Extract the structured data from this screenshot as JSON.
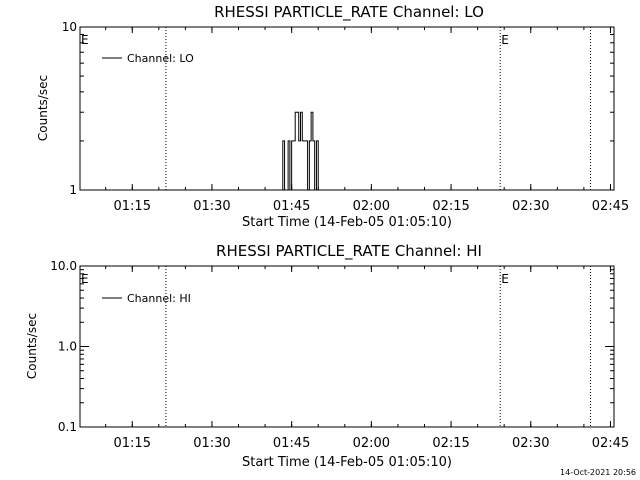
{
  "timestamp": "14-Oct-2021 20:56",
  "chart_data": [
    {
      "type": "line",
      "title": "RHESSI PARTICLE_RATE Channel: LO",
      "xlabel": "Start Time (14-Feb-05 01:05:10)",
      "ylabel": "Counts/sec",
      "yscale": "log",
      "ylim": [
        1,
        10
      ],
      "yticks": [
        1,
        10
      ],
      "ytick_labels": [
        "1",
        "10"
      ],
      "xlim": [
        "01:05:10",
        "02:45:40"
      ],
      "xticks": [
        "01:15",
        "01:30",
        "01:45",
        "02:00",
        "02:15",
        "02:30",
        "02:45"
      ],
      "legend": {
        "label": "Channel: LO",
        "position": "top-left"
      },
      "markers": [
        {
          "time": "01:05:10",
          "label": "E"
        },
        {
          "time": "02:24:15",
          "label": "E"
        }
      ],
      "vlines": [
        "01:21:20",
        "02:24:15",
        "02:41:15"
      ],
      "series": [
        {
          "name": "Channel: LO",
          "segments": [
            [
              {
                "t": "01:43:00",
                "y": 1
              },
              {
                "t": "01:43:20",
                "y": 2
              },
              {
                "t": "01:43:40",
                "y": 1
              },
              {
                "t": "01:44:00",
                "y": 1
              },
              {
                "t": "01:44:20",
                "y": 2
              },
              {
                "t": "01:44:40",
                "y": 1
              },
              {
                "t": "01:45:00",
                "y": 2
              },
              {
                "t": "01:45:20",
                "y": 2
              },
              {
                "t": "01:45:40",
                "y": 3
              },
              {
                "t": "01:46:00",
                "y": 3
              },
              {
                "t": "01:46:20",
                "y": 2
              },
              {
                "t": "01:46:40",
                "y": 3
              },
              {
                "t": "01:47:00",
                "y": 2
              },
              {
                "t": "01:47:20",
                "y": 2
              },
              {
                "t": "01:47:40",
                "y": 2
              },
              {
                "t": "01:48:00",
                "y": 1
              },
              {
                "t": "01:48:20",
                "y": 2
              },
              {
                "t": "01:48:40",
                "y": 3
              },
              {
                "t": "01:49:00",
                "y": 2
              },
              {
                "t": "01:49:20",
                "y": 1
              },
              {
                "t": "01:49:40",
                "y": 2
              },
              {
                "t": "01:50:00",
                "y": 1
              }
            ]
          ]
        }
      ]
    },
    {
      "type": "line",
      "title": "RHESSI PARTICLE_RATE Channel: HI",
      "xlabel": "Start Time (14-Feb-05 01:05:10)",
      "ylabel": "Counts/sec",
      "yscale": "log",
      "ylim": [
        0.1,
        10
      ],
      "yticks": [
        0.1,
        1,
        10
      ],
      "ytick_labels": [
        "0.1",
        "1.0",
        "10.0"
      ],
      "xlim": [
        "01:05:10",
        "02:45:40"
      ],
      "xticks": [
        "01:15",
        "01:30",
        "01:45",
        "02:00",
        "02:15",
        "02:30",
        "02:45"
      ],
      "legend": {
        "label": "Channel: HI",
        "position": "top-left"
      },
      "markers": [
        {
          "time": "01:05:10",
          "label": "E"
        },
        {
          "time": "02:24:15",
          "label": "E"
        }
      ],
      "vlines": [
        "01:21:20",
        "02:24:15",
        "02:41:15"
      ],
      "series": [
        {
          "name": "Channel: HI",
          "segments": []
        }
      ]
    }
  ]
}
